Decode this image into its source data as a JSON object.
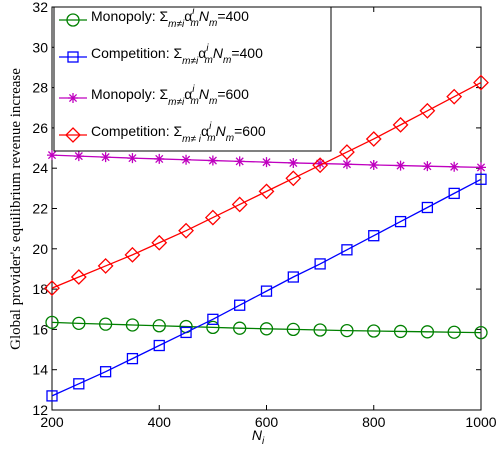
{
  "chart_data": {
    "type": "line",
    "title": "",
    "xlabel": "N",
    "xlabel_sub": "i",
    "ylabel": "Global provider's equilibrium revenue increase",
    "xlim": [
      200,
      1000
    ],
    "ylim": [
      12,
      32
    ],
    "xticks": [
      "200",
      "400",
      "600",
      "800",
      "1000"
    ],
    "yticks": [
      "12",
      "14",
      "16",
      "18",
      "20",
      "22",
      "24",
      "26",
      "28",
      "30",
      "32"
    ],
    "grid": false,
    "legend_position": "top-left",
    "x": [
      200,
      250,
      300,
      350,
      400,
      450,
      500,
      550,
      600,
      650,
      700,
      750,
      800,
      850,
      900,
      950,
      1000
    ],
    "series": [
      {
        "name": "Monopoly: Σm≠iαimNm=400",
        "legend_label": {
          "prefix": "Monopoly: Σ",
          "sub1": "m≠i",
          "mid": "α",
          "sup": "i",
          "sub2": "m",
          "mid2": "N",
          "sub3": "m",
          "suffix": "=400"
        },
        "color": "#008000",
        "marker": "circle",
        "values": [
          16.35,
          16.3,
          16.26,
          16.22,
          16.18,
          16.14,
          16.1,
          16.06,
          16.03,
          16.0,
          15.97,
          15.94,
          15.92,
          15.9,
          15.88,
          15.86,
          15.84
        ]
      },
      {
        "name": "Competition: Σm≠iαimNm=400",
        "legend_label": {
          "prefix": "Competition: Σ",
          "sub1": "m≠i",
          "mid": "α",
          "sup": "i",
          "sub2": "m",
          "mid2": "N",
          "sub3": "m",
          "suffix": "=400"
        },
        "color": "#0000ff",
        "marker": "square",
        "values": [
          12.7,
          13.3,
          13.9,
          14.55,
          15.2,
          15.85,
          16.5,
          17.2,
          17.9,
          18.6,
          19.25,
          19.95,
          20.65,
          21.35,
          22.05,
          22.75,
          23.45
        ]
      },
      {
        "name": "Monopoly: Σm≠iαimNm=600",
        "legend_label": {
          "prefix": "Monopoly: Σ",
          "sub1": "m≠i",
          "mid": "α",
          "sup": "i",
          "sub2": "m",
          "mid2": "N",
          "sub3": "m",
          "suffix": "=600"
        },
        "color": "#bf00bf",
        "marker": "asterisk",
        "values": [
          24.65,
          24.6,
          24.55,
          24.5,
          24.46,
          24.42,
          24.38,
          24.34,
          24.3,
          24.26,
          24.23,
          24.2,
          24.16,
          24.13,
          24.1,
          24.07,
          24.04
        ]
      },
      {
        "name": "Competition: Σm≠iαimNm=600",
        "legend_label": {
          "prefix": "Competition: Σ",
          "sub1": "m≠ i",
          "mid": "α",
          "sup": "i",
          "sub2": "m",
          "mid2": "N",
          "sub3": "m",
          "suffix": "=600"
        },
        "color": "#ff0000",
        "marker": "diamond",
        "values": [
          18.05,
          18.6,
          19.15,
          19.7,
          20.3,
          20.9,
          21.55,
          22.2,
          22.85,
          23.5,
          24.15,
          24.8,
          25.45,
          26.15,
          26.85,
          27.55,
          28.25
        ]
      }
    ]
  }
}
